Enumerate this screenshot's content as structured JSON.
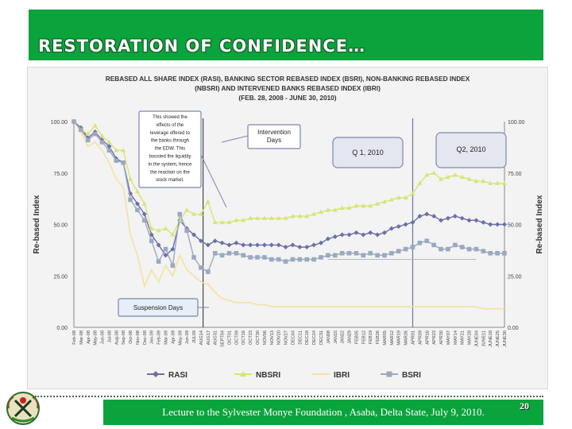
{
  "slide": {
    "title": "RESTORATION OF CONFIDENCE…",
    "footer": "Lecture to the Sylvester Monye Foundation , Asaba, Delta State, July 9, 2010.",
    "page_number": "20",
    "colors": {
      "header": "#0aa33c",
      "footer": "#0aa33c"
    }
  },
  "chart_data": {
    "type": "line",
    "title": [
      "REBASED ALL SHARE INDEX (RASI), BANKING SECTOR REBASED INDEX (BSRI), NON-BANKING REBASED INDEX",
      "(NBSRI) AND INTERVENED BANKS REBASED INDEX (IBRI)",
      "(FEB. 28, 2008 - JUNE 30, 2010)"
    ],
    "ylabel": "Re-based Index",
    "ylabel_right": "Re-based Index",
    "ylim": [
      0,
      100
    ],
    "yticks": [
      "0.00",
      "25.00",
      "50.00",
      "75.00",
      "100.00"
    ],
    "x": [
      "Feb-08",
      "Mar-08",
      "Apr-08",
      "May-08",
      "Jun-08",
      "Jul-08",
      "Aug-08",
      "Sep-08",
      "Oct-08",
      "Nov-08",
      "Dec-08",
      "Jan-09",
      "Feb-09",
      "Mar-09",
      "Apr-09",
      "May-09",
      "Jun-09",
      "JUL09",
      "AUG14",
      "AUG17",
      "AUG31",
      "SEPT04",
      "OCT01",
      "OCT09",
      "OCT16",
      "OCT23",
      "OCT30",
      "NOV06",
      "NOV13",
      "NOV20",
      "NOV27",
      "DEC04",
      "DEC11",
      "DEC18",
      "DEC24",
      "DEC31",
      "JAN08",
      "JAN15",
      "JAN22",
      "JAN29",
      "FEB05",
      "FEB12",
      "FEB19",
      "FEB26",
      "MAR05",
      "MAR12",
      "MAR19",
      "MAR26",
      "APR01",
      "APR09",
      "APR16",
      "APR23",
      "APR30",
      "MAY07",
      "MAY14",
      "MAY21",
      "MAY28",
      "JUNE04",
      "JUNE11",
      "JUNE18",
      "JUNE25",
      "JUNE30"
    ],
    "xticks": [
      "Feb-08",
      "Mar-08",
      "Apr-08",
      "May-08",
      "Jun-08",
      "Jul-08",
      "Aug-08",
      "Sep-08",
      "Oct-08",
      "Nov-08",
      "Dec-08",
      "Jan-09",
      "Feb-09",
      "Mar-09",
      "Apr-09",
      "May-09",
      "Jun-09",
      "JUL09",
      "AUG14",
      "AUG17",
      "AUG31",
      "SEPT04",
      "OCT01",
      "OCT09",
      "OCT16",
      "OCT23",
      "OCT30",
      "NOV06",
      "NOV13",
      "NOV20",
      "NOV27",
      "DEC04",
      "DEC11",
      "DEC18",
      "DEC24",
      "DEC31",
      "JAN08",
      "JAN15",
      "JAN22",
      "JAN29",
      "FEB05",
      "FEB12",
      "FEB19",
      "FEB26",
      "MAR05",
      "MAR12",
      "MAR19",
      "MAR26",
      "APR01",
      "APR09",
      "APR16",
      "APR23",
      "APR30",
      "MAY07",
      "MAY14",
      "MAY21",
      "MAY28",
      "JUNE04",
      "JUNE11",
      "JUNE18",
      "JUNE25",
      "JUNE30"
    ],
    "series": [
      {
        "name": "RASI",
        "color": "#6a6fa8",
        "marker": "diamond",
        "values": [
          100,
          97,
          92,
          95,
          91,
          88,
          82,
          80,
          65,
          60,
          55,
          45,
          40,
          35,
          38,
          52,
          48,
          45,
          42,
          40,
          42,
          41,
          40,
          41,
          40,
          40,
          40,
          40,
          40,
          40,
          39,
          40,
          39,
          39,
          40,
          41,
          43,
          44,
          45,
          45,
          46,
          45,
          46,
          45,
          46,
          48,
          49,
          50,
          51,
          54,
          55,
          54,
          52,
          53,
          54,
          53,
          52,
          52,
          51,
          50,
          50,
          50
        ]
      },
      {
        "name": "NBSRI",
        "color": "#d8e472",
        "marker": "triangle",
        "values": [
          100,
          96,
          94,
          98,
          93,
          90,
          86,
          86,
          72,
          66,
          60,
          48,
          47,
          48,
          45,
          52,
          57,
          55,
          55,
          61,
          51,
          51,
          51,
          52,
          52,
          53,
          53,
          53,
          53,
          53,
          53,
          54,
          54,
          54,
          55,
          56,
          57,
          57,
          58,
          58,
          59,
          59,
          59,
          60,
          61,
          62,
          63,
          63,
          65,
          70,
          74,
          75,
          72,
          73,
          74,
          73,
          72,
          71,
          71,
          70,
          70,
          70
        ]
      },
      {
        "name": "IBRI",
        "color": "#f3e2a0",
        "marker": "none",
        "values": [
          100,
          95,
          88,
          90,
          86,
          80,
          72,
          68,
          45,
          35,
          20,
          28,
          22,
          30,
          25,
          35,
          28,
          25,
          22,
          21,
          17,
          14,
          13,
          12,
          12,
          12,
          11,
          11,
          10,
          10,
          10,
          10,
          10,
          10,
          10,
          10,
          10,
          10,
          10,
          10,
          10,
          10,
          10,
          10,
          10,
          10,
          10,
          10,
          10,
          10,
          10,
          10,
          10,
          10,
          10,
          10,
          10,
          10,
          9,
          9,
          9,
          9
        ]
      },
      {
        "name": "BSRI",
        "color": "#9aa9c0",
        "marker": "square",
        "values": [
          100,
          96,
          91,
          94,
          90,
          86,
          81,
          80,
          62,
          57,
          52,
          42,
          32,
          38,
          30,
          55,
          47,
          34,
          29,
          27,
          36,
          35,
          36,
          36,
          35,
          34,
          34,
          34,
          33,
          33,
          32,
          33,
          33,
          33,
          33,
          34,
          35,
          35,
          36,
          36,
          36,
          35,
          36,
          35,
          35,
          36,
          37,
          38,
          39,
          41,
          42,
          40,
          38,
          38,
          40,
          39,
          38,
          38,
          37,
          36,
          36,
          36
        ]
      }
    ],
    "annotations": [
      {
        "id": "leverage",
        "lines": [
          "This showed the",
          "effects of the",
          "leverage offered to",
          "the banks through",
          "the EDW. This",
          "boosted the liquidity",
          "in the system, hence",
          "the reaction on the",
          "stock market."
        ]
      },
      {
        "id": "intervention",
        "lines": [
          "Intervention",
          "Days"
        ]
      },
      {
        "id": "q1",
        "lines": [
          "Q 1, 2010"
        ]
      },
      {
        "id": "q2",
        "lines": [
          "Q2, 2010"
        ]
      },
      {
        "id": "suspension",
        "lines": [
          "Suspension Days"
        ]
      }
    ],
    "legend_position": "bottom",
    "grid": false
  }
}
